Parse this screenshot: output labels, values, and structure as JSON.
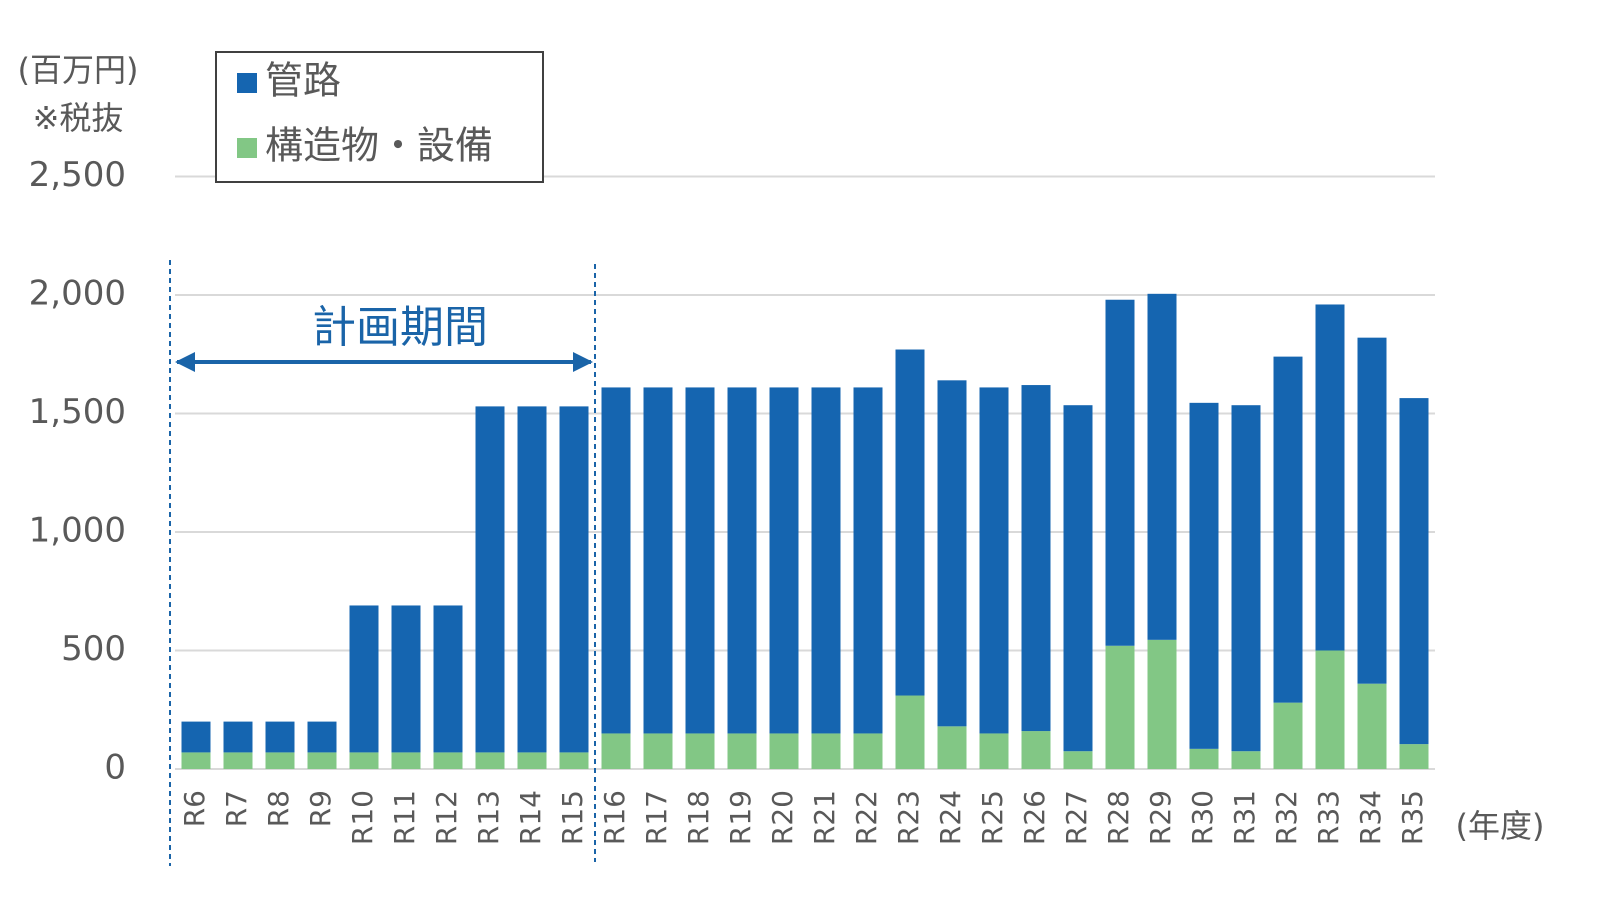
{
  "chart_data": {
    "type": "bar",
    "stacked": true,
    "y_unit": "(百万円)",
    "note": "※税抜",
    "x_unit": "(年度)",
    "period_label": "計画期間",
    "categories": [
      "R6",
      "R7",
      "R8",
      "R9",
      "R10",
      "R11",
      "R12",
      "R13",
      "R14",
      "R15",
      "R16",
      "R17",
      "R18",
      "R19",
      "R20",
      "R21",
      "R22",
      "R23",
      "R24",
      "R25",
      "R26",
      "R27",
      "R28",
      "R29",
      "R30",
      "R31",
      "R32",
      "R33",
      "R34",
      "R35"
    ],
    "series": [
      {
        "name": "管路",
        "color": "#1565b0",
        "values": [
          130,
          130,
          130,
          130,
          620,
          620,
          620,
          1460,
          1460,
          1460,
          1460,
          1460,
          1460,
          1460,
          1460,
          1460,
          1460,
          1460,
          1460,
          1460,
          1460,
          1460,
          1460,
          1460,
          1460,
          1460,
          1460,
          1460,
          1460,
          1460
        ]
      },
      {
        "name": "構造物・設備",
        "color": "#82c785",
        "values": [
          70,
          70,
          70,
          70,
          70,
          70,
          70,
          70,
          70,
          70,
          150,
          150,
          150,
          150,
          150,
          150,
          150,
          310,
          180,
          150,
          160,
          75,
          520,
          545,
          85,
          75,
          280,
          500,
          360,
          105
        ]
      }
    ],
    "ylim": [
      0,
      2500
    ],
    "yticks": [
      0,
      500,
      {
        "value": 1000,
        "label": "1,000"
      },
      {
        "value": 1500,
        "label": "1,500"
      },
      {
        "value": 2000,
        "label": "2,000"
      },
      {
        "value": 2500,
        "label": "2,500"
      }
    ],
    "grid": true,
    "legend": "upper left"
  }
}
